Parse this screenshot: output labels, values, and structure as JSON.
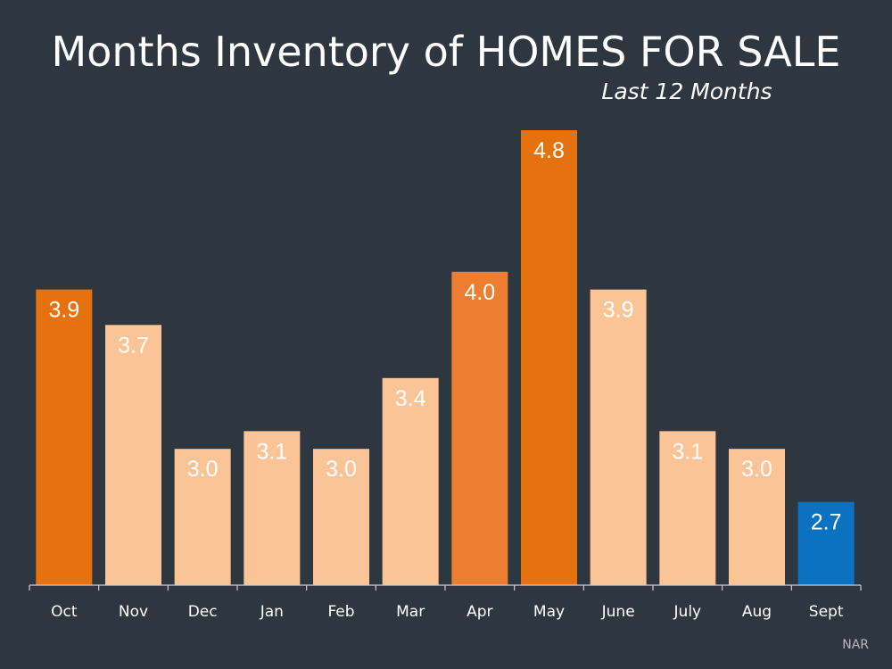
{
  "chart_data": {
    "type": "bar",
    "title": "Months Inventory of HOMES FOR SALE",
    "subtitle": "Last 12 Months",
    "categories": [
      "Oct",
      "Nov",
      "Dec",
      "Jan",
      "Feb",
      "Mar",
      "Apr",
      "May",
      "June",
      "July",
      "Aug",
      "Sept"
    ],
    "values": [
      3.9,
      3.7,
      3.0,
      3.1,
      3.0,
      3.4,
      4.0,
      4.8,
      3.9,
      3.1,
      3.0,
      2.7
    ],
    "value_labels": [
      "3.9",
      "3.7",
      "3.0",
      "3.1",
      "3.0",
      "3.4",
      "4.0",
      "4.8",
      "3.9",
      "3.1",
      "3.0",
      "2.7"
    ],
    "bar_colors": [
      "#e5720e",
      "#fbc496",
      "#fbc496",
      "#fbc496",
      "#fbc496",
      "#fbc496",
      "#ed7d31",
      "#e5720e",
      "#fbc496",
      "#fbc496",
      "#fbc496",
      "#0b72c2"
    ],
    "xlabel": "",
    "ylabel": "",
    "ylim": [
      2.23,
      4.8
    ],
    "grid": false,
    "legend": "none"
  },
  "source": "NAR"
}
